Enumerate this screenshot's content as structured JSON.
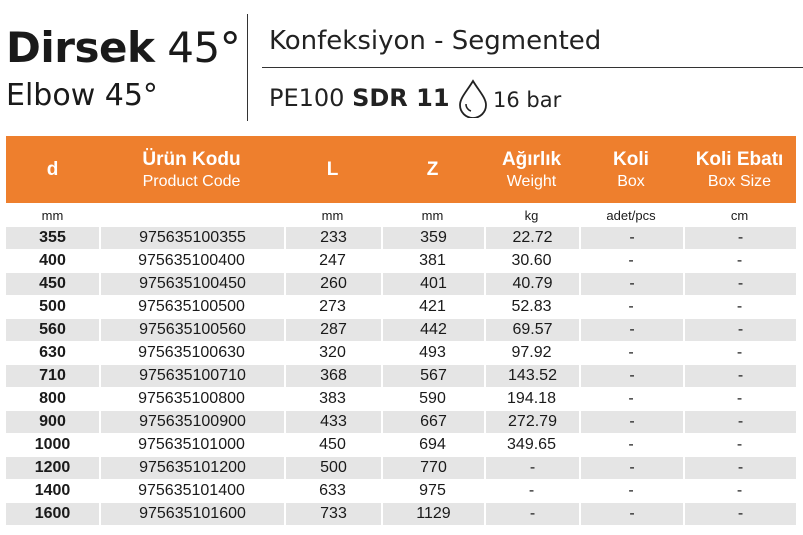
{
  "header": {
    "title_bold": "Dirsek",
    "title_light": "45°",
    "subtitle": "Elbow 45°",
    "segment": "Konfeksiyon - Segmented",
    "material": "PE100",
    "sdr": "SDR 11",
    "pressure": "16 bar",
    "pressure_icon": "water-drop-icon"
  },
  "table": {
    "header_color": "#ee7f2d",
    "columns": [
      {
        "tr": "d",
        "en": ""
      },
      {
        "tr": "Ürün Kodu",
        "en": "Product Code"
      },
      {
        "tr": "L",
        "en": ""
      },
      {
        "tr": "Z",
        "en": ""
      },
      {
        "tr": "Ağırlık",
        "en": "Weight"
      },
      {
        "tr": "Koli",
        "en": "Box"
      },
      {
        "tr": "Koli Ebatı",
        "en": "Box Size"
      }
    ],
    "units": [
      "mm",
      "",
      "mm",
      "mm",
      "kg",
      "adet/pcs",
      "cm"
    ],
    "rows": [
      [
        "355",
        "975635100355",
        "233",
        "359",
        "22.72",
        "-",
        "-"
      ],
      [
        "400",
        "975635100400",
        "247",
        "381",
        "30.60",
        "-",
        "-"
      ],
      [
        "450",
        "975635100450",
        "260",
        "401",
        "40.79",
        "-",
        "-"
      ],
      [
        "500",
        "975635100500",
        "273",
        "421",
        "52.83",
        "-",
        "-"
      ],
      [
        "560",
        "975635100560",
        "287",
        "442",
        "69.57",
        "-",
        "-"
      ],
      [
        "630",
        "975635100630",
        "320",
        "493",
        "97.92",
        "-",
        "-"
      ],
      [
        "710",
        "975635100710",
        "368",
        "567",
        "143.52",
        "-",
        "-"
      ],
      [
        "800",
        "975635100800",
        "383",
        "590",
        "194.18",
        "-",
        "-"
      ],
      [
        "900",
        "975635100900",
        "433",
        "667",
        "272.79",
        "-",
        "-"
      ],
      [
        "1000",
        "975635101000",
        "450",
        "694",
        "349.65",
        "-",
        "-"
      ],
      [
        "1200",
        "975635101200",
        "500",
        "770",
        "-",
        "-",
        "-"
      ],
      [
        "1400",
        "975635101400",
        "633",
        "975",
        "-",
        "-",
        "-"
      ],
      [
        "1600",
        "975635101600",
        "733",
        "1129",
        "-",
        "-",
        "-"
      ]
    ]
  }
}
